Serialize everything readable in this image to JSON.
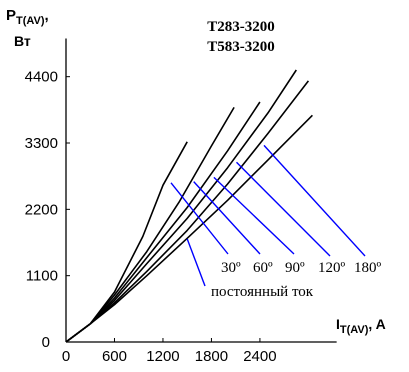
{
  "chart_data": {
    "type": "line",
    "title_lines": [
      "Т283-3200",
      "Т583-3200"
    ],
    "y_axis": {
      "label_main": "P",
      "label_sub": "T(AV)",
      "label_suffix": ",",
      "unit": "Вт",
      "ticks": [
        "0",
        "1100",
        "2200",
        "3300",
        "4400"
      ],
      "range": [
        0,
        5000
      ]
    },
    "x_axis": {
      "label_main": "I",
      "label_sub": "T(AV)",
      "label_suffix": ", A",
      "ticks": [
        "0",
        "600",
        "1200",
        "1800",
        "2400"
      ],
      "range": [
        0,
        3300
      ]
    },
    "grid": false,
    "series": [
      {
        "name": "30º",
        "x": [
          0,
          300,
          600,
          950,
          1200,
          1500
        ],
        "y": [
          0,
          300,
          830,
          1750,
          2600,
          3320
        ]
      },
      {
        "name": "60º",
        "x": [
          0,
          300,
          600,
          1000,
          1400,
          1800,
          2080
        ],
        "y": [
          0,
          300,
          780,
          1500,
          2320,
          3250,
          3890
        ]
      },
      {
        "name": "90º",
        "x": [
          0,
          300,
          600,
          1000,
          1500,
          2000,
          2400
        ],
        "y": [
          0,
          300,
          730,
          1400,
          2230,
          3170,
          3980
        ]
      },
      {
        "name": "120º",
        "x": [
          0,
          300,
          600,
          1000,
          1500,
          2000,
          2500,
          2850
        ],
        "y": [
          0,
          300,
          690,
          1300,
          2050,
          2890,
          3800,
          4510
        ]
      },
      {
        "name": "180º",
        "x": [
          0,
          300,
          600,
          1000,
          1500,
          2000,
          2500,
          3000
        ],
        "y": [
          0,
          300,
          650,
          1170,
          1850,
          2620,
          3460,
          4330
        ]
      },
      {
        "name": "постоянный ток",
        "x": [
          0,
          300,
          600,
          1000,
          1500,
          2000,
          2500,
          3050
        ],
        "y": [
          0,
          300,
          620,
          1100,
          1720,
          2350,
          3020,
          3760
        ]
      }
    ],
    "annotations": [
      {
        "text": "30º",
        "point": [
          1300,
          2640
        ]
      },
      {
        "text": "60º",
        "point": [
          1580,
          2660
        ]
      },
      {
        "text": "90º",
        "point": [
          1830,
          2730
        ]
      },
      {
        "text": "120º",
        "point": [
          2110,
          2980
        ]
      },
      {
        "text": "180º",
        "point": [
          2450,
          3260
        ]
      },
      {
        "text": "постоянный ток",
        "point": [
          1500,
          1710
        ]
      }
    ],
    "label_text_color": "#000000",
    "leader_line_color": "#0000ff",
    "line_color": "#000000"
  }
}
